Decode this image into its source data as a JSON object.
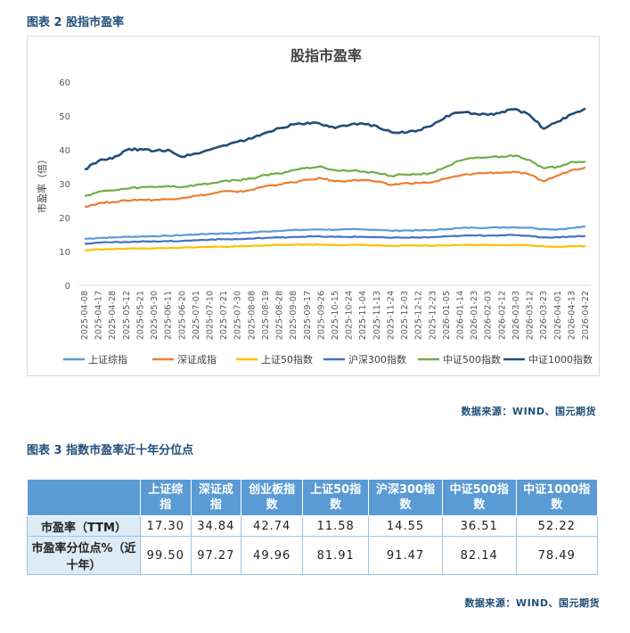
{
  "caption_chart": "图表 2 股指市盈率",
  "caption_table": "图表 3 指数市盈率近十年分位点",
  "source_chart": "数据来源：WIND、国元期货",
  "source_table": "数据来源：WIND、国元期货",
  "chart_data": {
    "type": "line",
    "title": "股指市盈率",
    "ylabel": "市盈率（倍）",
    "xlabel": "",
    "ylim": [
      0,
      60
    ],
    "yticks": [
      0,
      10,
      20,
      30,
      40,
      50,
      60
    ],
    "grid": false,
    "legend_position": "bottom",
    "x": [
      "2025-04-08",
      "2025-04-17",
      "2025-04-28",
      "2025-05-12",
      "2025-05-21",
      "2025-05-30",
      "2025-06-11",
      "2025-06-20",
      "2025-07-01",
      "2025-07-10",
      "2025-07-21",
      "2025-07-30",
      "2025-08-08",
      "2025-08-19",
      "2025-08-28",
      "2025-09-08",
      "2025-09-17",
      "2025-09-26",
      "2025-10-15",
      "2025-10-24",
      "2025-11-04",
      "2025-11-13",
      "2025-11-24",
      "2025-12-03",
      "2025-12-12",
      "2025-12-23",
      "2026-01-05",
      "2026-01-14",
      "2026-01-23",
      "2026-02-03",
      "2026-02-12",
      "2026-03-03",
      "2026-03-12",
      "2026-03-23",
      "2026-04-01",
      "2026-04-13",
      "2026-04-22"
    ],
    "series": [
      {
        "name": "上证综指",
        "color": "#5b9bd5",
        "values": [
          13.7,
          14.0,
          14.1,
          14.3,
          14.4,
          14.5,
          14.6,
          14.8,
          15.0,
          15.2,
          15.3,
          15.4,
          15.6,
          15.9,
          16.1,
          16.3,
          16.4,
          16.5,
          16.4,
          16.5,
          16.5,
          16.4,
          16.1,
          16.2,
          16.2,
          16.3,
          16.6,
          16.9,
          17.0,
          17.0,
          17.1,
          17.1,
          17.0,
          16.6,
          16.5,
          16.9,
          17.3
        ]
      },
      {
        "name": "深证成指",
        "color": "#ed7d31",
        "values": [
          23.2,
          24.2,
          24.6,
          25.0,
          25.3,
          25.2,
          25.4,
          25.8,
          26.4,
          26.9,
          27.8,
          27.5,
          28.2,
          29.3,
          29.8,
          30.4,
          31.1,
          31.6,
          30.7,
          30.9,
          31.1,
          30.6,
          29.6,
          30.1,
          30.2,
          30.4,
          31.5,
          32.4,
          33.0,
          33.2,
          33.3,
          33.4,
          32.6,
          30.7,
          32.4,
          34.0,
          34.84
        ]
      },
      {
        "name": "上证50指数",
        "color": "#ffc000",
        "values": [
          10.3,
          10.6,
          10.7,
          10.8,
          10.9,
          10.9,
          11.0,
          11.1,
          11.2,
          11.3,
          11.4,
          11.5,
          11.6,
          11.8,
          11.9,
          12.0,
          12.0,
          12.0,
          11.9,
          11.9,
          11.9,
          11.8,
          11.6,
          11.7,
          11.7,
          11.7,
          11.8,
          11.9,
          11.9,
          11.9,
          11.9,
          11.9,
          11.8,
          11.5,
          11.4,
          11.5,
          11.58
        ]
      },
      {
        "name": "沪深300指数",
        "color": "#4472c4",
        "values": [
          12.3,
          12.6,
          12.7,
          12.8,
          12.9,
          13.0,
          13.0,
          13.1,
          13.3,
          13.5,
          13.6,
          13.6,
          13.8,
          14.0,
          14.1,
          14.3,
          14.4,
          14.4,
          14.3,
          14.3,
          14.3,
          14.2,
          14.0,
          14.1,
          14.1,
          14.2,
          14.4,
          14.6,
          14.7,
          14.7,
          14.8,
          14.8,
          14.6,
          14.1,
          14.2,
          14.4,
          14.55
        ]
      },
      {
        "name": "中证500指数",
        "color": "#70ad47",
        "values": [
          26.3,
          27.6,
          28.0,
          28.5,
          28.9,
          29.0,
          29.3,
          29.0,
          29.6,
          30.0,
          30.8,
          31.0,
          31.5,
          32.6,
          33.0,
          34.0,
          34.7,
          35.1,
          34.0,
          33.8,
          33.6,
          33.2,
          32.3,
          32.7,
          32.8,
          33.2,
          35.0,
          36.8,
          37.5,
          37.8,
          38.0,
          38.3,
          37.0,
          34.5,
          35.0,
          36.5,
          36.51
        ]
      },
      {
        "name": "中证1000指数",
        "color": "#1f4e79",
        "values": [
          34.2,
          36.7,
          37.4,
          39.9,
          40.2,
          39.6,
          40.0,
          37.9,
          38.9,
          40.0,
          41.3,
          42.4,
          43.3,
          45.0,
          46.4,
          47.5,
          48.0,
          47.5,
          46.4,
          47.2,
          47.7,
          47.0,
          45.3,
          45.0,
          45.8,
          47.2,
          50.0,
          51.0,
          50.7,
          50.3,
          51.2,
          52.0,
          50.2,
          46.2,
          48.3,
          50.5,
          52.22
        ]
      }
    ]
  },
  "table": {
    "headers": [
      "上证综指",
      "深证成指",
      "创业板指数",
      "上证50指数",
      "沪深300指数",
      "中证500指数",
      "中证1000指数"
    ],
    "rows": [
      {
        "label": "市盈率（TTM）",
        "values": [
          "17.30",
          "34.84",
          "42.74",
          "11.58",
          "14.55",
          "36.51",
          "52.22"
        ]
      },
      {
        "label": "市盈率分位点%（近十年）",
        "values": [
          "99.50",
          "97.27",
          "49.96",
          "81.91",
          "91.47",
          "82.14",
          "78.49"
        ]
      }
    ]
  }
}
